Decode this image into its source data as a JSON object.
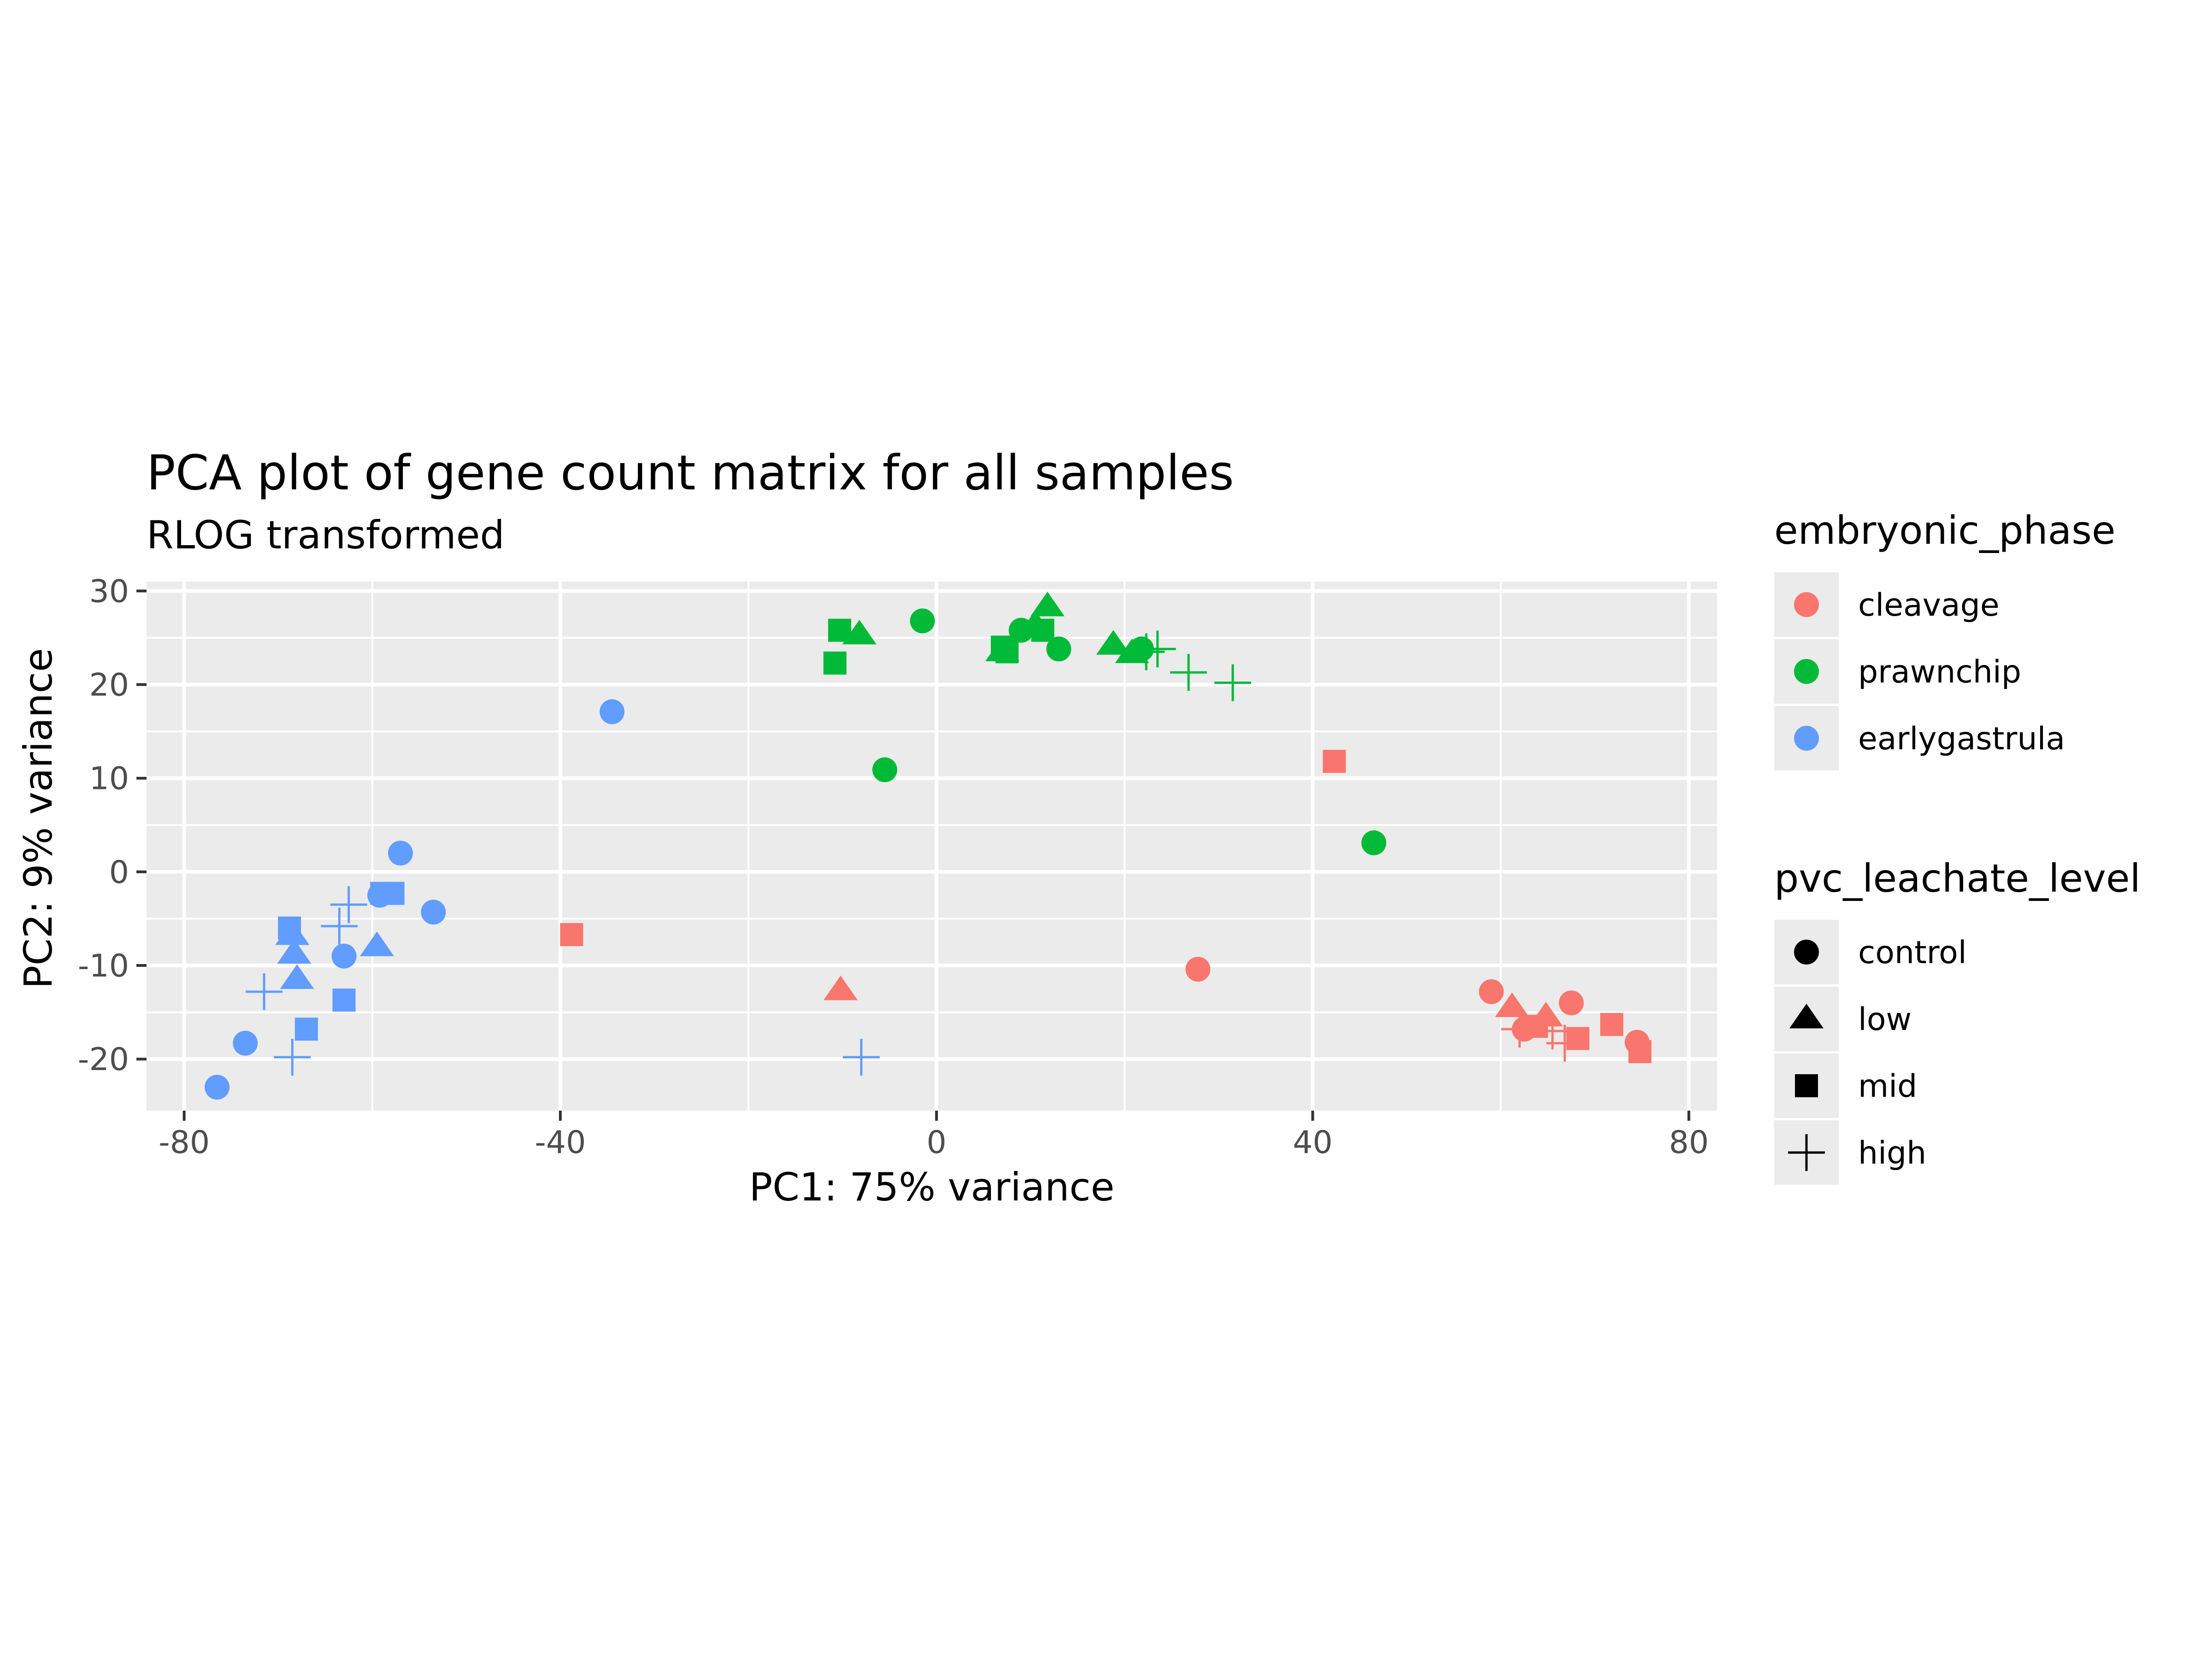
{
  "chart_data": {
    "type": "scatter",
    "title": "PCA plot of gene count matrix for all samples",
    "subtitle": "RLOG transformed",
    "xlabel": "PC1: 75% variance",
    "ylabel": "PC2: 9% variance",
    "xlim": [
      -84,
      83
    ],
    "ylim": [
      -25.5,
      31.0
    ],
    "x_ticks": [
      -80,
      -40,
      0,
      40,
      80
    ],
    "y_ticks": [
      -20,
      -10,
      0,
      10,
      20,
      30
    ],
    "grid": true,
    "legend_position": "right",
    "legends": [
      {
        "title": "embryonic_phase",
        "kind": "color",
        "entries": [
          {
            "label": "cleavage",
            "color": "#F8766D"
          },
          {
            "label": "prawnchip",
            "color": "#00BA38"
          },
          {
            "label": "earlygastrula",
            "color": "#619CFF"
          }
        ]
      },
      {
        "title": "pvc_leachate_level",
        "kind": "shape",
        "entries": [
          {
            "label": "control",
            "shape": "circle"
          },
          {
            "label": "low",
            "shape": "triangle"
          },
          {
            "label": "mid",
            "shape": "square"
          },
          {
            "label": "high",
            "shape": "plus"
          }
        ]
      }
    ],
    "points": [
      {
        "x": -76.5,
        "y": -23.0,
        "phase": "earlygastrula",
        "level": "control"
      },
      {
        "x": -73.5,
        "y": -18.3,
        "phase": "earlygastrula",
        "level": "control"
      },
      {
        "x": -71.5,
        "y": -12.8,
        "phase": "earlygastrula",
        "level": "high"
      },
      {
        "x": -68.5,
        "y": -19.8,
        "phase": "earlygastrula",
        "level": "high"
      },
      {
        "x": -68.8,
        "y": -6.0,
        "phase": "earlygastrula",
        "level": "mid"
      },
      {
        "x": -68.5,
        "y": -6.8,
        "phase": "earlygastrula",
        "level": "low"
      },
      {
        "x": -68.3,
        "y": -8.8,
        "phase": "earlygastrula",
        "level": "low"
      },
      {
        "x": -68.0,
        "y": -11.5,
        "phase": "earlygastrula",
        "level": "low"
      },
      {
        "x": -67.0,
        "y": -16.8,
        "phase": "earlygastrula",
        "level": "mid"
      },
      {
        "x": -63.0,
        "y": -9.0,
        "phase": "earlygastrula",
        "level": "control"
      },
      {
        "x": -63.0,
        "y": -13.7,
        "phase": "earlygastrula",
        "level": "mid"
      },
      {
        "x": -63.5,
        "y": -5.8,
        "phase": "earlygastrula",
        "level": "high"
      },
      {
        "x": -62.5,
        "y": -3.5,
        "phase": "earlygastrula",
        "level": "high"
      },
      {
        "x": -59.5,
        "y": -8.0,
        "phase": "earlygastrula",
        "level": "low"
      },
      {
        "x": -59.2,
        "y": -2.5,
        "phase": "earlygastrula",
        "level": "control"
      },
      {
        "x": -59.0,
        "y": -2.3,
        "phase": "earlygastrula",
        "level": "mid"
      },
      {
        "x": -57.8,
        "y": -2.3,
        "phase": "earlygastrula",
        "level": "mid"
      },
      {
        "x": -57.0,
        "y": 2.0,
        "phase": "earlygastrula",
        "level": "control"
      },
      {
        "x": -53.5,
        "y": -4.3,
        "phase": "earlygastrula",
        "level": "control"
      },
      {
        "x": -34.5,
        "y": 17.1,
        "phase": "earlygastrula",
        "level": "control"
      },
      {
        "x": -8.0,
        "y": -19.8,
        "phase": "earlygastrula",
        "level": "high"
      },
      {
        "x": -38.8,
        "y": -6.7,
        "phase": "cleavage",
        "level": "mid"
      },
      {
        "x": -10.2,
        "y": -12.7,
        "phase": "cleavage",
        "level": "low"
      },
      {
        "x": 27.8,
        "y": -10.4,
        "phase": "cleavage",
        "level": "control"
      },
      {
        "x": 42.3,
        "y": 11.8,
        "phase": "cleavage",
        "level": "mid"
      },
      {
        "x": 59.0,
        "y": -12.8,
        "phase": "cleavage",
        "level": "control"
      },
      {
        "x": 61.2,
        "y": -14.5,
        "phase": "cleavage",
        "level": "low"
      },
      {
        "x": 62.0,
        "y": -16.8,
        "phase": "cleavage",
        "level": "high"
      },
      {
        "x": 62.5,
        "y": -16.8,
        "phase": "cleavage",
        "level": "control"
      },
      {
        "x": 63.8,
        "y": -16.5,
        "phase": "cleavage",
        "level": "mid"
      },
      {
        "x": 64.8,
        "y": -15.5,
        "phase": "cleavage",
        "level": "low"
      },
      {
        "x": 65.5,
        "y": -17.0,
        "phase": "cleavage",
        "level": "high"
      },
      {
        "x": 66.8,
        "y": -18.3,
        "phase": "cleavage",
        "level": "high"
      },
      {
        "x": 67.5,
        "y": -14.0,
        "phase": "cleavage",
        "level": "control"
      },
      {
        "x": 68.2,
        "y": -17.8,
        "phase": "cleavage",
        "level": "mid"
      },
      {
        "x": 71.8,
        "y": -16.3,
        "phase": "cleavage",
        "level": "mid"
      },
      {
        "x": 74.5,
        "y": -18.2,
        "phase": "cleavage",
        "level": "control"
      },
      {
        "x": 74.8,
        "y": -19.2,
        "phase": "cleavage",
        "level": "mid"
      },
      {
        "x": -10.8,
        "y": 22.3,
        "phase": "prawnchip",
        "level": "mid"
      },
      {
        "x": -10.3,
        "y": 25.8,
        "phase": "prawnchip",
        "level": "mid"
      },
      {
        "x": -8.2,
        "y": 25.3,
        "phase": "prawnchip",
        "level": "low"
      },
      {
        "x": -5.5,
        "y": 10.9,
        "phase": "prawnchip",
        "level": "control"
      },
      {
        "x": -1.5,
        "y": 26.8,
        "phase": "prawnchip",
        "level": "control"
      },
      {
        "x": 7.0,
        "y": 23.5,
        "phase": "prawnchip",
        "level": "low"
      },
      {
        "x": 7.0,
        "y": 24.0,
        "phase": "prawnchip",
        "level": "mid"
      },
      {
        "x": 7.5,
        "y": 23.5,
        "phase": "prawnchip",
        "level": "mid"
      },
      {
        "x": 9.0,
        "y": 25.8,
        "phase": "prawnchip",
        "level": "control"
      },
      {
        "x": 10.5,
        "y": 26.3,
        "phase": "prawnchip",
        "level": "low"
      },
      {
        "x": 11.3,
        "y": 25.8,
        "phase": "prawnchip",
        "level": "mid"
      },
      {
        "x": 11.8,
        "y": 28.3,
        "phase": "prawnchip",
        "level": "low"
      },
      {
        "x": 13.0,
        "y": 23.8,
        "phase": "prawnchip",
        "level": "control"
      },
      {
        "x": 18.8,
        "y": 24.2,
        "phase": "prawnchip",
        "level": "low"
      },
      {
        "x": 20.8,
        "y": 23.3,
        "phase": "prawnchip",
        "level": "low"
      },
      {
        "x": 21.8,
        "y": 23.8,
        "phase": "prawnchip",
        "level": "control"
      },
      {
        "x": 22.3,
        "y": 23.5,
        "phase": "prawnchip",
        "level": "high"
      },
      {
        "x": 23.5,
        "y": 23.8,
        "phase": "prawnchip",
        "level": "high"
      },
      {
        "x": 26.8,
        "y": 21.3,
        "phase": "prawnchip",
        "level": "high"
      },
      {
        "x": 31.5,
        "y": 20.2,
        "phase": "prawnchip",
        "level": "high"
      },
      {
        "x": 46.5,
        "y": 3.1,
        "phase": "prawnchip",
        "level": "control"
      }
    ]
  }
}
